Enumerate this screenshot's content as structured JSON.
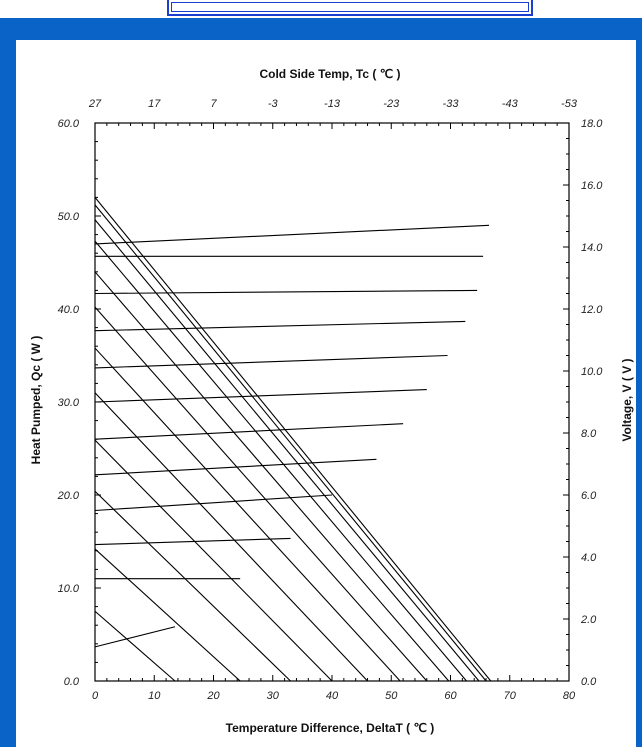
{
  "chart_data": {
    "type": "line",
    "title": "Cold Side Temp, Tc ( ℃ )",
    "xlabel": "Temperature Difference, DeltaT ( ℃ )",
    "ylabel": "Heat Pumped, Qc  ( W )",
    "y2label": "Voltage, V ( V )",
    "xlim": [
      0,
      80
    ],
    "ylim": [
      0,
      60
    ],
    "y2lim": [
      0,
      18
    ],
    "x_ticks": [
      "0",
      "10",
      "20",
      "30",
      "40",
      "50",
      "60",
      "70",
      "80"
    ],
    "y_ticks": [
      "0.0",
      "10.0",
      "20.0",
      "30.0",
      "40.0",
      "50.0",
      "60.0"
    ],
    "y2_ticks": [
      "0.0",
      "2.0",
      "4.0",
      "6.0",
      "8.0",
      "10.0",
      "12.0",
      "14.0",
      "16.0",
      "18.0"
    ],
    "top_ticks": [
      "27",
      "17",
      "7",
      "-3",
      "-13",
      "-23",
      "-33",
      "-43",
      "-53"
    ],
    "grid": false,
    "heat_pumped_series": [
      {
        "x": [
          0,
          13.5
        ],
        "y": [
          7.5,
          0
        ]
      },
      {
        "x": [
          0,
          24.5
        ],
        "y": [
          14.2,
          0
        ]
      },
      {
        "x": [
          0,
          33.0
        ],
        "y": [
          20.4,
          0
        ]
      },
      {
        "x": [
          0,
          40.0
        ],
        "y": [
          25.9,
          0
        ]
      },
      {
        "x": [
          0,
          46.0
        ],
        "y": [
          31.0,
          0
        ]
      },
      {
        "x": [
          0,
          51.5
        ],
        "y": [
          35.8,
          0
        ]
      },
      {
        "x": [
          0,
          56.0
        ],
        "y": [
          40.2,
          0
        ]
      },
      {
        "x": [
          0,
          59.7
        ],
        "y": [
          44.0,
          0
        ]
      },
      {
        "x": [
          0,
          62.7
        ],
        "y": [
          47.3,
          0
        ]
      },
      {
        "x": [
          0,
          64.8
        ],
        "y": [
          49.6,
          0
        ]
      },
      {
        "x": [
          0,
          66.0
        ],
        "y": [
          51.2,
          0
        ]
      },
      {
        "x": [
          0,
          66.8
        ],
        "y": [
          52.0,
          0
        ]
      }
    ],
    "voltage_series": [
      {
        "x": [
          0,
          13.5
        ],
        "y": [
          1.1,
          1.75
        ]
      },
      {
        "x": [
          0,
          24.5
        ],
        "y": [
          3.3,
          3.3
        ]
      },
      {
        "x": [
          0,
          33.0
        ],
        "y": [
          4.4,
          4.6
        ]
      },
      {
        "x": [
          0,
          40.0
        ],
        "y": [
          5.5,
          6.0
        ]
      },
      {
        "x": [
          0,
          47.5
        ],
        "y": [
          6.65,
          7.15
        ]
      },
      {
        "x": [
          0,
          52.0
        ],
        "y": [
          7.8,
          8.3
        ]
      },
      {
        "x": [
          0,
          56.0
        ],
        "y": [
          9.0,
          9.4
        ]
      },
      {
        "x": [
          0,
          59.5
        ],
        "y": [
          10.1,
          10.5
        ]
      },
      {
        "x": [
          0,
          62.5
        ],
        "y": [
          11.3,
          11.6
        ]
      },
      {
        "x": [
          0,
          64.5
        ],
        "y": [
          12.5,
          12.6
        ]
      },
      {
        "x": [
          0,
          65.5
        ],
        "y": [
          13.7,
          13.7
        ]
      },
      {
        "x": [
          0,
          66.5
        ],
        "y": [
          14.1,
          14.7
        ]
      }
    ]
  }
}
